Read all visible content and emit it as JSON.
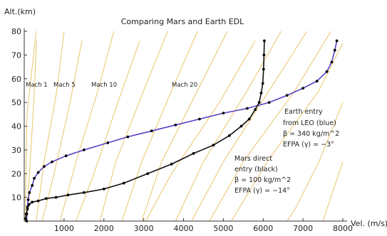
{
  "chart_data": {
    "type": "line",
    "title": "Comparing Mars and Earth EDL",
    "xlabel": "Vel. (m/s)",
    "ylabel": "Alt.(km)",
    "xlim": [
      0,
      8000
    ],
    "ylim": [
      0,
      80
    ],
    "xticks": [
      1000,
      2000,
      3000,
      4000,
      5000,
      6000,
      7000,
      8000
    ],
    "yticks": [
      10,
      20,
      30,
      40,
      50,
      60,
      70,
      80
    ],
    "grid": false,
    "series": [
      {
        "name": "Earth entry from LEO (blue)",
        "color": "#5b3fc4",
        "points": [
          [
            7850,
            76
          ],
          [
            7800,
            72
          ],
          [
            7720,
            67
          ],
          [
            7600,
            63
          ],
          [
            7350,
            59
          ],
          [
            7000,
            56
          ],
          [
            6600,
            53
          ],
          [
            6150,
            50
          ],
          [
            5600,
            47.5
          ],
          [
            5000,
            45.5
          ],
          [
            4400,
            43
          ],
          [
            3800,
            40.5
          ],
          [
            3200,
            38
          ],
          [
            2600,
            35.5
          ],
          [
            2100,
            33
          ],
          [
            1500,
            30
          ],
          [
            1050,
            27.5
          ],
          [
            700,
            25
          ],
          [
            500,
            23
          ],
          [
            350,
            20.5
          ],
          [
            250,
            18
          ],
          [
            200,
            15
          ],
          [
            130,
            12
          ],
          [
            100,
            9
          ],
          [
            80,
            6
          ],
          [
            65,
            3
          ],
          [
            60,
            0
          ]
        ]
      },
      {
        "name": "Mars direct entry (black)",
        "color": "#111111",
        "points": [
          [
            6030,
            76
          ],
          [
            6020,
            70
          ],
          [
            6010,
            64
          ],
          [
            5990,
            58
          ],
          [
            5950,
            54
          ],
          [
            5900,
            50
          ],
          [
            5800,
            47
          ],
          [
            5650,
            43
          ],
          [
            5450,
            40
          ],
          [
            5150,
            36
          ],
          [
            4750,
            32
          ],
          [
            4250,
            28.5
          ],
          [
            3700,
            24
          ],
          [
            3100,
            20
          ],
          [
            2500,
            16
          ],
          [
            2000,
            13.5
          ],
          [
            1500,
            12
          ],
          [
            1100,
            11
          ],
          [
            800,
            10
          ],
          [
            550,
            9.5
          ],
          [
            350,
            8.5
          ],
          [
            200,
            8
          ],
          [
            120,
            7
          ],
          [
            80,
            5
          ],
          [
            50,
            3
          ],
          [
            35,
            1
          ]
        ]
      }
    ],
    "mach_lines": [
      {
        "label": "Mach 1",
        "points": [
          [
            310,
            76
          ],
          [
            240,
            50
          ],
          [
            130,
            20
          ],
          [
            60,
            0
          ]
        ]
      },
      {
        "label": "Mach 5",
        "points": [
          [
            1450,
            76
          ],
          [
            1150,
            50
          ],
          [
            750,
            20
          ],
          [
            450,
            0
          ]
        ]
      },
      {
        "label": "Mach 10",
        "points": [
          [
            2900,
            76
          ],
          [
            2350,
            50
          ],
          [
            1750,
            20
          ],
          [
            1300,
            0
          ]
        ]
      },
      {
        "label": "Mach 20",
        "points": [
          [
            5800,
            76
          ],
          [
            4900,
            50
          ],
          [
            3700,
            20
          ],
          [
            3050,
            0
          ]
        ]
      },
      {
        "label": "",
        "points": [
          [
            300,
            80
          ],
          [
            200,
            65
          ],
          [
            70,
            45
          ],
          [
            20,
            0
          ]
        ]
      },
      {
        "label": "",
        "points": [
          [
            1000,
            80
          ],
          [
            820,
            55
          ],
          [
            500,
            25
          ],
          [
            300,
            0
          ]
        ]
      },
      {
        "label": "",
        "points": [
          [
            2250,
            80
          ],
          [
            1850,
            55
          ],
          [
            1300,
            25
          ],
          [
            900,
            0
          ]
        ]
      },
      {
        "label": "",
        "points": [
          [
            3600,
            80
          ],
          [
            3000,
            55
          ],
          [
            2300,
            25
          ],
          [
            1900,
            0
          ]
        ]
      },
      {
        "label": "",
        "points": [
          [
            4350,
            80
          ],
          [
            3700,
            55
          ],
          [
            2950,
            25
          ],
          [
            2450,
            0
          ]
        ]
      },
      {
        "label": "",
        "points": [
          [
            5100,
            80
          ],
          [
            4350,
            55
          ],
          [
            3450,
            25
          ],
          [
            2950,
            0
          ]
        ]
      },
      {
        "label": "",
        "points": [
          [
            6450,
            80
          ],
          [
            5600,
            55
          ],
          [
            4500,
            25
          ],
          [
            3800,
            0
          ]
        ]
      },
      {
        "label": "",
        "points": [
          [
            7100,
            80
          ],
          [
            6150,
            55
          ],
          [
            5000,
            25
          ],
          [
            4200,
            0
          ]
        ]
      },
      {
        "label": "",
        "points": [
          [
            7700,
            80
          ],
          [
            6800,
            55
          ],
          [
            5500,
            25
          ],
          [
            4650,
            0
          ]
        ]
      },
      {
        "label": "",
        "points": [
          [
            8000,
            75
          ],
          [
            7400,
            55
          ],
          [
            6100,
            25
          ],
          [
            5200,
            0
          ]
        ]
      },
      {
        "label": "",
        "points": [
          [
            8000,
            50
          ],
          [
            7400,
            25
          ],
          [
            6800,
            5
          ],
          [
            6600,
            0
          ]
        ]
      },
      {
        "label": "",
        "points": [
          [
            8000,
            25
          ],
          [
            7700,
            10
          ],
          [
            7500,
            0
          ]
        ]
      }
    ],
    "annotations": [
      {
        "name": "earth",
        "lines": [
          "Earth entry",
          "from LEO (blue)",
          "β = 340 kg/m^2",
          "EFPA (γ) = −3°"
        ]
      },
      {
        "name": "mars",
        "lines": [
          "Mars direct",
          "entry (black)",
          "β = 100 kg/m^2",
          "EFPA (γ) = −14°"
        ]
      }
    ]
  }
}
